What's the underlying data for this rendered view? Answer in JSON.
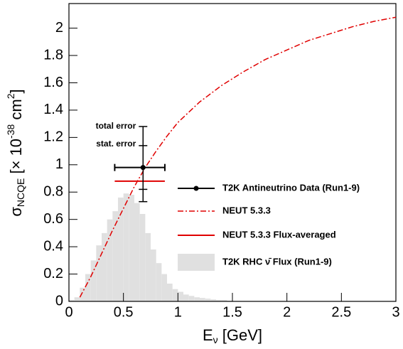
{
  "chart_data": {
    "type": "line",
    "x_label": {
      "main": "E",
      "sub": "ν",
      "rest": " [GeV]"
    },
    "y_label": {
      "main": "σ",
      "sub": "NCQE",
      "pre": " [× 10",
      "exp": "-38",
      "unit": " cm",
      "unit_exp": "2",
      "close": "]"
    },
    "xlim": [
      0,
      3
    ],
    "xticks": [
      0,
      0.5,
      1,
      1.5,
      2,
      2.5,
      3
    ],
    "ylim": [
      0,
      2.18
    ],
    "yticks": [
      0,
      0.2,
      0.4,
      0.6,
      0.8,
      1,
      1.2,
      1.4,
      1.6,
      1.8,
      2
    ],
    "x": [
      0.1,
      0.2,
      0.3,
      0.4,
      0.5,
      0.6,
      0.7,
      0.8,
      0.9,
      1.0,
      1.2,
      1.4,
      1.6,
      1.8,
      2.0,
      2.2,
      2.4,
      2.6,
      2.8,
      3.0
    ],
    "series": [
      {
        "name": "NEUT 5.3.3",
        "color": "#e00000",
        "line_style": "dash-dot",
        "values": [
          0.03,
          0.18,
          0.35,
          0.52,
          0.68,
          0.84,
          0.98,
          1.1,
          1.21,
          1.31,
          1.46,
          1.58,
          1.68,
          1.77,
          1.84,
          1.91,
          1.96,
          2.01,
          2.05,
          2.08
        ]
      }
    ],
    "flux_averaged": {
      "name": "NEUT 5.3.3 Flux-averaged",
      "color": "#e00000",
      "value": 0.88,
      "x_low": 0.42,
      "x_high": 0.88
    },
    "measurement": {
      "name": "T2K Antineutrino Data (Run1-9)",
      "color": "#000000",
      "x": 0.68,
      "y": 0.98,
      "x_low": 0.42,
      "x_high": 0.88,
      "stat_error": 0.16,
      "total_error_up": 0.3,
      "total_error_down": 0.25,
      "total_label": "total error",
      "stat_label": "stat. error"
    },
    "flux": {
      "name": "T2K RHC ν̄ Flux (Run1-9)",
      "color": "#e0e0e0",
      "bins": [
        0,
        0.05,
        0.1,
        0.15,
        0.2,
        0.25,
        0.3,
        0.35,
        0.4,
        0.45,
        0.5,
        0.55,
        0.6,
        0.65,
        0.7,
        0.75,
        0.8,
        0.85,
        0.9,
        0.95,
        1.0,
        1.05,
        1.1,
        1.15,
        1.2,
        1.25,
        1.3,
        1.35,
        1.4,
        1.45,
        1.5
      ],
      "counts": [
        0.01,
        0.03,
        0.1,
        0.2,
        0.3,
        0.41,
        0.5,
        0.6,
        0.66,
        0.76,
        0.79,
        0.78,
        0.72,
        0.64,
        0.5,
        0.38,
        0.28,
        0.2,
        0.13,
        0.09,
        0.07,
        0.05,
        0.04,
        0.03,
        0.025,
        0.02,
        0.015,
        0.01,
        0.01,
        0.005
      ]
    }
  }
}
